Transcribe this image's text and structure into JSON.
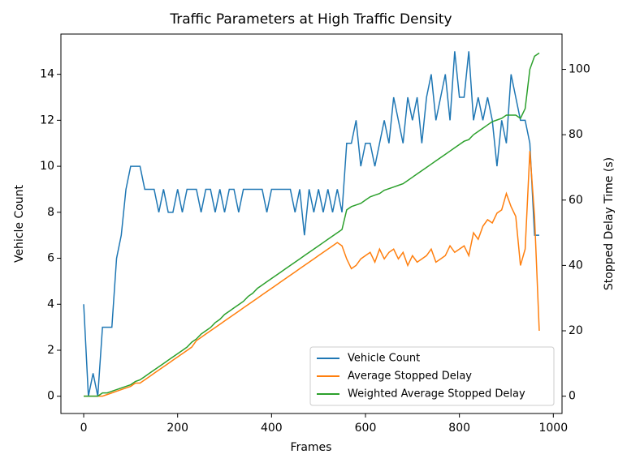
{
  "chart_data": {
    "type": "line",
    "title": "Traffic Parameters at High Traffic Density",
    "x_label": "Frames",
    "y_label": "Vehicle Count",
    "y2_label": "Stopped Delay Time (s)",
    "x": [
      0,
      10,
      20,
      30,
      40,
      50,
      60,
      70,
      80,
      90,
      100,
      110,
      120,
      130,
      140,
      150,
      160,
      170,
      180,
      190,
      200,
      210,
      220,
      230,
      240,
      250,
      260,
      270,
      280,
      290,
      300,
      310,
      320,
      330,
      340,
      350,
      360,
      370,
      380,
      390,
      400,
      410,
      420,
      430,
      440,
      450,
      460,
      470,
      480,
      490,
      500,
      510,
      520,
      530,
      540,
      550,
      560,
      570,
      580,
      590,
      600,
      610,
      620,
      630,
      640,
      650,
      660,
      670,
      680,
      690,
      700,
      710,
      720,
      730,
      740,
      750,
      760,
      770,
      780,
      790,
      800,
      810,
      820,
      830,
      840,
      850,
      860,
      870,
      880,
      890,
      900,
      910,
      920,
      930,
      940,
      950,
      960,
      970
    ],
    "series": [
      {
        "name": "Vehicle Count",
        "color": "#1f77b4",
        "axis": "y",
        "values": [
          4,
          0,
          1,
          0,
          3,
          3,
          3,
          6,
          7,
          9,
          10,
          10,
          10,
          9,
          9,
          9,
          8,
          9,
          8,
          8,
          9,
          8,
          9,
          9,
          9,
          8,
          9,
          9,
          8,
          9,
          8,
          9,
          9,
          8,
          9,
          9,
          9,
          9,
          9,
          8,
          9,
          9,
          9,
          9,
          9,
          8,
          9,
          7,
          9,
          8,
          9,
          8,
          9,
          8,
          9,
          8,
          11,
          11,
          12,
          10,
          11,
          11,
          10,
          11,
          12,
          11,
          13,
          12,
          11,
          13,
          12,
          13,
          11,
          13,
          14,
          12,
          13,
          14,
          12,
          15,
          13,
          13,
          15,
          12,
          13,
          12,
          13,
          12,
          10,
          12,
          11,
          14,
          13,
          12,
          12,
          11,
          7,
          7
        ]
      },
      {
        "name": "Average Stopped Delay",
        "color": "#ff7f0e",
        "axis": "y2",
        "values": [
          0,
          0,
          0,
          0,
          0,
          0.5,
          1,
          1.5,
          2,
          2.5,
          3,
          4,
          4,
          5,
          6,
          7,
          8,
          9,
          10,
          11,
          12,
          13,
          14,
          15,
          17,
          18,
          19,
          20,
          21,
          22,
          23,
          24,
          25,
          26,
          27,
          28,
          29,
          30,
          31,
          32,
          33,
          34,
          35,
          36,
          37,
          38,
          39,
          40,
          41,
          42,
          43,
          44,
          45,
          46,
          47,
          46,
          42,
          39,
          40,
          42,
          43,
          44,
          41,
          45,
          42,
          44,
          45,
          42,
          44,
          40,
          43,
          41,
          42,
          43,
          45,
          41,
          42,
          43,
          46,
          44,
          45,
          46,
          43,
          50,
          48,
          52,
          54,
          53,
          56,
          57,
          62,
          58,
          55,
          40,
          45,
          75,
          55,
          20
        ]
      },
      {
        "name": "Weighted Average Stopped Delay",
        "color": "#2ca02c",
        "axis": "y2",
        "values": [
          0,
          0,
          0,
          0,
          1,
          1,
          1.5,
          2,
          2.5,
          3,
          3.5,
          4.5,
          5,
          6,
          7,
          8,
          9,
          10,
          11,
          12,
          13,
          14,
          15,
          16.5,
          17.5,
          19,
          20,
          21,
          22.5,
          23.5,
          25,
          26,
          27,
          28,
          29,
          30.5,
          31.5,
          33,
          34,
          35,
          36,
          37,
          38,
          39,
          40,
          41,
          42,
          43,
          44,
          45,
          46,
          47,
          48,
          49,
          50,
          51,
          57,
          58,
          58.5,
          59,
          60,
          61,
          61.5,
          62,
          63,
          63.5,
          64,
          64.5,
          65,
          66,
          67,
          68,
          69,
          70,
          71,
          72,
          73,
          74,
          75,
          76,
          77,
          78,
          78.5,
          80,
          81,
          82,
          83,
          84,
          84.5,
          85,
          86,
          86,
          86,
          85,
          88,
          100,
          104,
          105
        ]
      }
    ],
    "xlim": [
      -48.5,
      1018.5
    ],
    "xticks": [
      0,
      200,
      400,
      600,
      800,
      1000
    ],
    "ylim": [
      -0.75,
      15.75
    ],
    "yticks": [
      0,
      2,
      4,
      6,
      8,
      10,
      12,
      14
    ],
    "y2lim": [
      -5.3,
      110.8
    ],
    "y2ticks": [
      0,
      20,
      40,
      60,
      80,
      100
    ],
    "y_color": "#1f77b4",
    "y2_color": "#ff7f0e",
    "legend": "lower right"
  }
}
